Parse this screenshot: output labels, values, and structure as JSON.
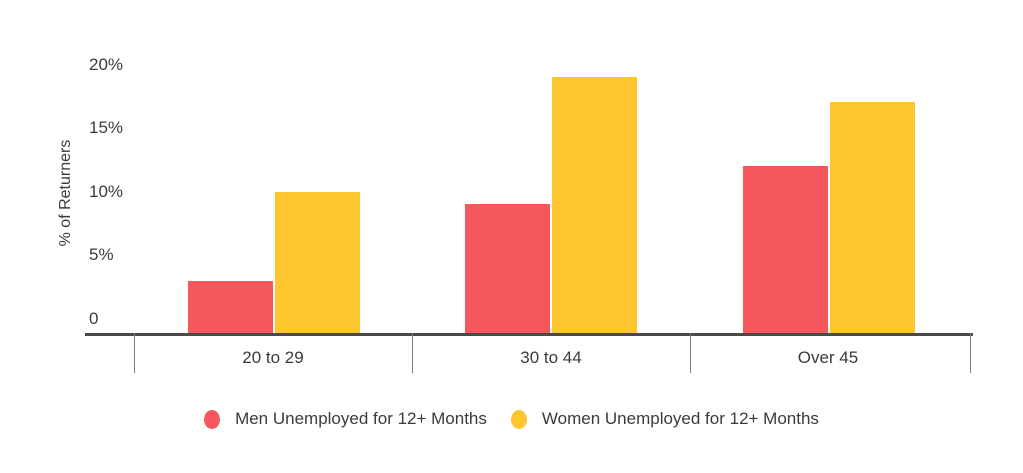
{
  "chart_data": {
    "type": "bar",
    "title": "",
    "categories": [
      "20 to 29",
      "30 to 44",
      "Over 45"
    ],
    "series": [
      {
        "name": "Men Unemployed for 12+ Months",
        "values": [
          3,
          9,
          12
        ],
        "color": "#F5575C"
      },
      {
        "name": "Women Unemployed for 12+ Months",
        "values": [
          10,
          19,
          17
        ],
        "color": "#FDC62F"
      }
    ],
    "xlabel": "",
    "ylabel": "% of Returners",
    "y_axis": {
      "tick_labels": [
        "20%",
        "15%",
        "10%",
        "5%",
        "0"
      ],
      "tick_values": [
        20,
        15,
        10,
        5,
        0
      ],
      "range": [
        0,
        20
      ],
      "unit": "percent"
    },
    "grid": false,
    "legend_position": "bottom",
    "background_color": "#FFFFFF",
    "axis_line_color": "#4A4A4A",
    "text_color": "#3B3B3B"
  }
}
